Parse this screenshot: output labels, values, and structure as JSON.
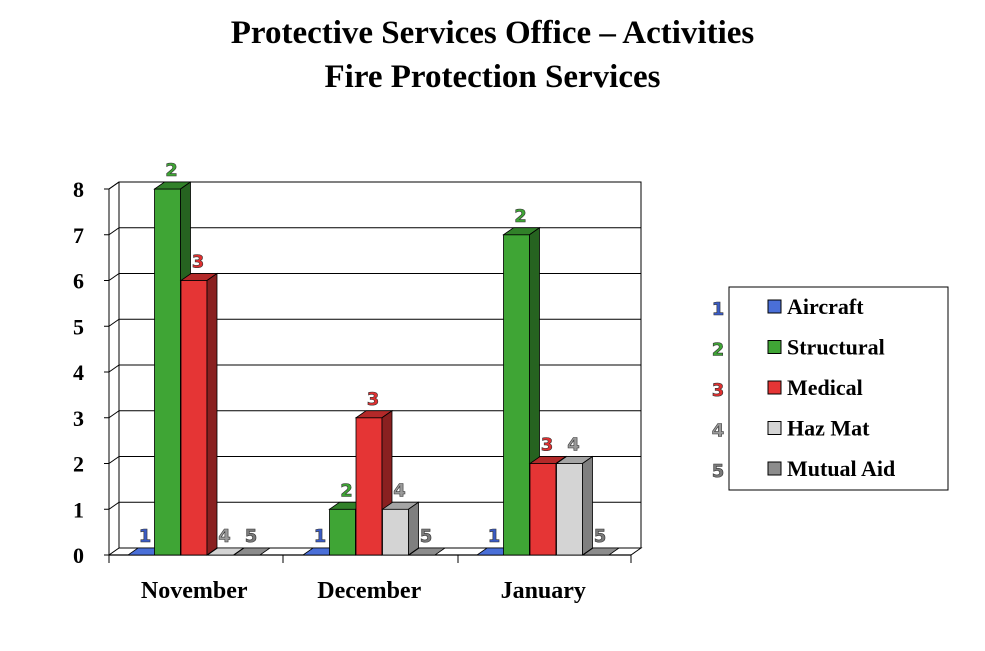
{
  "title": "Protective Services Office – Activities",
  "subtitle": "Fire Protection Services",
  "chart_data": {
    "type": "bar",
    "categories": [
      "November",
      "December",
      "January"
    ],
    "series": [
      {
        "name": "Aircraft",
        "key": "1",
        "color": "#4A6FD8",
        "label_color": "#3A5BC4",
        "values": [
          0,
          0,
          0
        ]
      },
      {
        "name": "Structural",
        "key": "2",
        "color": "#3FA535",
        "label_color": "#3FA535",
        "values": [
          8,
          1,
          7
        ]
      },
      {
        "name": "Medical",
        "key": "3",
        "color": "#E53535",
        "label_color": "#E03030",
        "values": [
          6,
          3,
          2
        ]
      },
      {
        "name": "Haz Mat",
        "key": "4",
        "color": "#D4D4D4",
        "label_color": "#9A9A9A",
        "values": [
          0,
          1,
          2
        ]
      },
      {
        "name": "Mutual Aid",
        "key": "5",
        "color": "#8C8C8C",
        "label_color": "#7A7A7A",
        "values": [
          0,
          0,
          0
        ]
      }
    ],
    "yticks": [
      "0",
      "1",
      "2",
      "3",
      "4",
      "5",
      "6",
      "7",
      "8"
    ],
    "ylim": [
      0,
      8
    ],
    "grid": true,
    "legend_position": "right"
  }
}
